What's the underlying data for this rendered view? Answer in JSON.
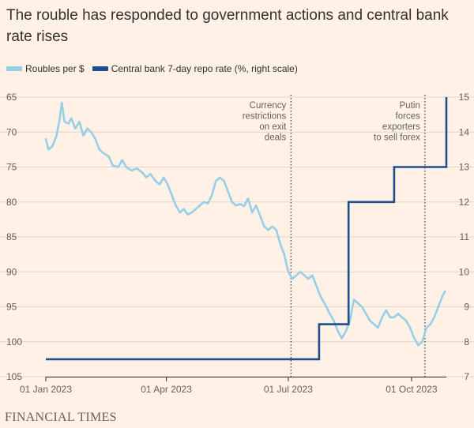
{
  "title": "The rouble has responded to government actions and central bank rate rises",
  "footer": "FINANCIAL TIMES",
  "colors": {
    "background": "#fff1e5",
    "rouble": "#96cfe6",
    "repo": "#1f4e8c",
    "grid": "#e0d5cc",
    "axis": "#33302e",
    "text": "#66605c"
  },
  "chart_data": {
    "type": "line",
    "x_start": "2023-01-01",
    "x_end": "2023-10-27",
    "x_ticks": [
      {
        "date": "2023-01-01",
        "label": "01 Jan 2023"
      },
      {
        "date": "2023-04-01",
        "label": "01 Apr 2023"
      },
      {
        "date": "2023-07-01",
        "label": "01 Jul 2023"
      },
      {
        "date": "2023-10-01",
        "label": "01 Oct 2023"
      }
    ],
    "y_left": {
      "min": 65,
      "max": 105,
      "inverted": true,
      "ticks": [
        "65",
        "70",
        "75",
        "80",
        "85",
        "90",
        "95",
        "100",
        "105"
      ]
    },
    "y_right": {
      "min": 7,
      "max": 15,
      "ticks": [
        "7",
        "8",
        "9",
        "10",
        "11",
        "12",
        "13",
        "14",
        "15"
      ]
    },
    "grid": true,
    "legend_position": "top-left",
    "series": [
      {
        "name": "Roubles per $",
        "axis": "left",
        "points": [
          [
            "2023-01-01",
            71.0
          ],
          [
            "2023-01-03",
            72.5
          ],
          [
            "2023-01-06",
            72.0
          ],
          [
            "2023-01-09",
            70.5
          ],
          [
            "2023-01-11",
            68.5
          ],
          [
            "2023-01-13",
            65.8
          ],
          [
            "2023-01-15",
            68.5
          ],
          [
            "2023-01-18",
            68.8
          ],
          [
            "2023-01-20",
            68.0
          ],
          [
            "2023-01-23",
            69.5
          ],
          [
            "2023-01-26",
            68.5
          ],
          [
            "2023-01-29",
            70.5
          ],
          [
            "2023-02-01",
            69.5
          ],
          [
            "2023-02-04",
            70.0
          ],
          [
            "2023-02-07",
            71.0
          ],
          [
            "2023-02-10",
            72.5
          ],
          [
            "2023-02-13",
            73.0
          ],
          [
            "2023-02-17",
            73.5
          ],
          [
            "2023-02-20",
            74.8
          ],
          [
            "2023-02-24",
            75.0
          ],
          [
            "2023-02-27",
            74.0
          ],
          [
            "2023-03-02",
            75.0
          ],
          [
            "2023-03-06",
            75.5
          ],
          [
            "2023-03-10",
            75.2
          ],
          [
            "2023-03-14",
            75.8
          ],
          [
            "2023-03-17",
            76.5
          ],
          [
            "2023-03-20",
            76.0
          ],
          [
            "2023-03-24",
            77.0
          ],
          [
            "2023-03-27",
            77.5
          ],
          [
            "2023-03-30",
            76.5
          ],
          [
            "2023-04-02",
            77.5
          ],
          [
            "2023-04-05",
            79.0
          ],
          [
            "2023-04-08",
            80.5
          ],
          [
            "2023-04-11",
            81.5
          ],
          [
            "2023-04-14",
            81.0
          ],
          [
            "2023-04-17",
            81.8
          ],
          [
            "2023-04-20",
            81.5
          ],
          [
            "2023-04-23",
            81.0
          ],
          [
            "2023-04-26",
            80.5
          ],
          [
            "2023-04-29",
            80.0
          ],
          [
            "2023-05-02",
            80.2
          ],
          [
            "2023-05-05",
            79.0
          ],
          [
            "2023-05-08",
            77.0
          ],
          [
            "2023-05-11",
            76.5
          ],
          [
            "2023-05-14",
            77.0
          ],
          [
            "2023-05-17",
            78.5
          ],
          [
            "2023-05-20",
            80.0
          ],
          [
            "2023-05-23",
            80.5
          ],
          [
            "2023-05-26",
            80.3
          ],
          [
            "2023-05-29",
            80.6
          ],
          [
            "2023-06-01",
            79.5
          ],
          [
            "2023-06-04",
            81.5
          ],
          [
            "2023-06-07",
            80.5
          ],
          [
            "2023-06-10",
            82.0
          ],
          [
            "2023-06-13",
            83.5
          ],
          [
            "2023-06-16",
            84.0
          ],
          [
            "2023-06-19",
            83.5
          ],
          [
            "2023-06-22",
            84.0
          ],
          [
            "2023-06-25",
            86.0
          ],
          [
            "2023-06-28",
            87.5
          ],
          [
            "2023-07-01",
            90.0
          ],
          [
            "2023-07-04",
            91.0
          ],
          [
            "2023-07-07",
            90.5
          ],
          [
            "2023-07-10",
            90.0
          ],
          [
            "2023-07-13",
            90.5
          ],
          [
            "2023-07-16",
            91.0
          ],
          [
            "2023-07-19",
            90.5
          ],
          [
            "2023-07-22",
            92.0
          ],
          [
            "2023-07-25",
            93.5
          ],
          [
            "2023-07-28",
            94.5
          ],
          [
            "2023-08-01",
            96.0
          ],
          [
            "2023-08-04",
            97.0
          ],
          [
            "2023-08-07",
            98.5
          ],
          [
            "2023-08-10",
            99.5
          ],
          [
            "2023-08-13",
            98.5
          ],
          [
            "2023-08-16",
            97.0
          ],
          [
            "2023-08-19",
            94.0
          ],
          [
            "2023-08-22",
            94.5
          ],
          [
            "2023-08-25",
            95.0
          ],
          [
            "2023-08-28",
            96.0
          ],
          [
            "2023-08-31",
            97.0
          ],
          [
            "2023-09-03",
            97.5
          ],
          [
            "2023-09-06",
            98.0
          ],
          [
            "2023-09-09",
            96.5
          ],
          [
            "2023-09-12",
            95.5
          ],
          [
            "2023-09-15",
            96.5
          ],
          [
            "2023-09-18",
            96.5
          ],
          [
            "2023-09-21",
            96.0
          ],
          [
            "2023-09-24",
            96.5
          ],
          [
            "2023-09-27",
            97.0
          ],
          [
            "2023-09-30",
            98.0
          ],
          [
            "2023-10-03",
            99.5
          ],
          [
            "2023-10-06",
            100.5
          ],
          [
            "2023-10-09",
            100.0
          ],
          [
            "2023-10-12",
            98.0
          ],
          [
            "2023-10-15",
            97.5
          ],
          [
            "2023-10-18",
            96.5
          ],
          [
            "2023-10-21",
            95.0
          ],
          [
            "2023-10-24",
            93.5
          ],
          [
            "2023-10-26",
            92.8
          ]
        ]
      },
      {
        "name": "Central bank 7-day repo rate (%, right scale)",
        "axis": "right",
        "steps": [
          [
            "2023-01-01",
            7.5
          ],
          [
            "2023-07-24",
            8.5
          ],
          [
            "2023-08-15",
            12.0
          ],
          [
            "2023-09-18",
            13.0
          ],
          [
            "2023-10-27",
            15.0
          ]
        ]
      }
    ],
    "annotations": [
      {
        "date": "2023-07-03",
        "lines": [
          "Currency",
          "restrictions",
          "on exit",
          "deals"
        ]
      },
      {
        "date": "2023-10-11",
        "lines": [
          "Putin",
          "forces",
          "exporters",
          "to sell forex"
        ]
      }
    ]
  }
}
